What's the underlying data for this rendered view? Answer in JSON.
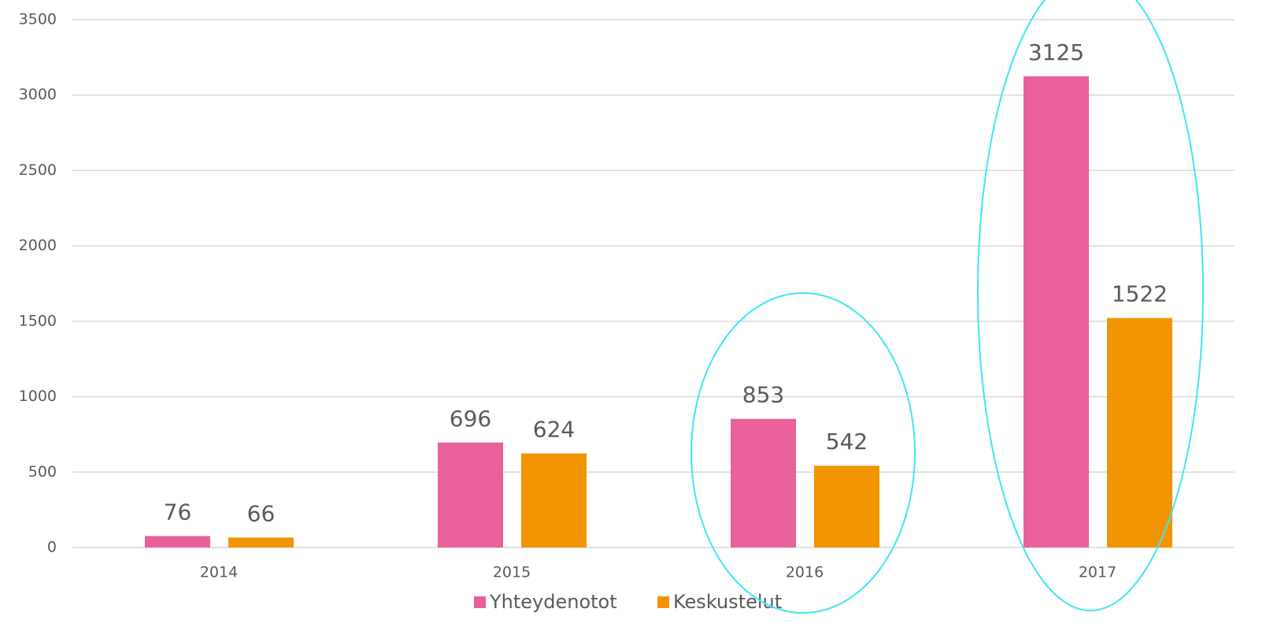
{
  "chart_data": {
    "type": "bar",
    "categories": [
      "2014",
      "2015",
      "2016",
      "2017"
    ],
    "series": [
      {
        "name": "Yhteydenotot",
        "color": "#e9609b",
        "values": [
          76,
          696,
          853,
          3125
        ]
      },
      {
        "name": "Keskustelut",
        "color": "#f29400",
        "values": [
          66,
          624,
          542,
          1522
        ]
      }
    ],
    "ylim": [
      0,
      3500
    ],
    "yticks": [
      0,
      500,
      1000,
      1500,
      2000,
      2500,
      3000,
      3500
    ],
    "grid": true,
    "legend": "bottom"
  }
}
